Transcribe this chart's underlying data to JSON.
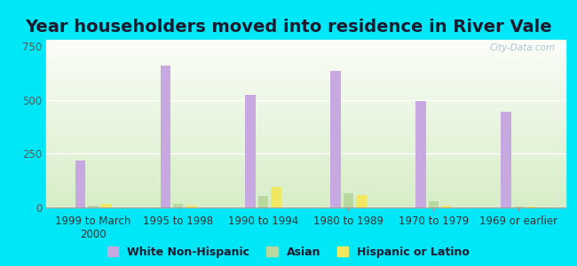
{
  "title": "Year householders moved into residence in River Vale",
  "background_outer": "#00e8f8",
  "background_inner_top": "#f5f8f0",
  "background_inner_bottom": "#d8ecc8",
  "categories": [
    "1999 to March\n2000",
    "1995 to 1998",
    "1990 to 1994",
    "1980 to 1989",
    "1970 to 1979",
    "1969 or earlier"
  ],
  "white_non_hispanic": [
    220,
    660,
    525,
    635,
    495,
    445
  ],
  "asian": [
    10,
    18,
    52,
    65,
    28,
    5
  ],
  "hispanic_or_latino": [
    15,
    10,
    95,
    58,
    10,
    4
  ],
  "bar_width": 0.12,
  "ylim": [
    0,
    780
  ],
  "yticks": [
    0,
    250,
    500,
    750
  ],
  "color_white": "#c8a8e0",
  "color_asian": "#b8d8a0",
  "color_hispanic": "#f0e860",
  "legend_labels": [
    "White Non-Hispanic",
    "Asian",
    "Hispanic or Latino"
  ],
  "watermark": "City-Data.com",
  "title_fontsize": 14,
  "tick_fontsize": 8.5,
  "legend_fontsize": 9
}
